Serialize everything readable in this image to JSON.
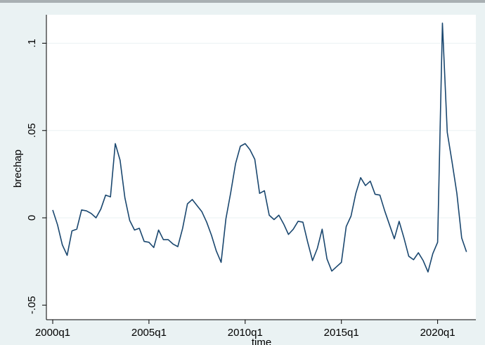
{
  "chart_data": {
    "type": "line",
    "title": "",
    "xlabel": "time",
    "ylabel": "brechap",
    "grid": true,
    "xlim": [
      "2000q1",
      "2021q3"
    ],
    "ylim": [
      -0.05,
      0.12
    ],
    "x_ticks": [
      {
        "label": "2000q1",
        "value": "2000q1"
      },
      {
        "label": "2005q1",
        "value": "2005q1"
      },
      {
        "label": "2010q1",
        "value": "2010q1"
      },
      {
        "label": "2015q1",
        "value": "2015q1"
      },
      {
        "label": "2020q1",
        "value": "2020q1"
      }
    ],
    "y_ticks": [
      {
        "label": "-.05",
        "value": -0.05
      },
      {
        "label": "0",
        "value": 0
      },
      {
        "label": ".05",
        "value": 0.05
      },
      {
        "label": ".1",
        "value": 0.1
      }
    ],
    "series": [
      {
        "color": "#1a476f",
        "x": [
          "2000q1",
          "2000q2",
          "2000q3",
          "2000q4",
          "2001q1",
          "2001q2",
          "2001q3",
          "2001q4",
          "2002q1",
          "2002q2",
          "2002q3",
          "2002q4",
          "2003q1",
          "2003q2",
          "2003q3",
          "2003q4",
          "2004q1",
          "2004q2",
          "2004q3",
          "2004q4",
          "2005q1",
          "2005q2",
          "2005q3",
          "2005q4",
          "2006q1",
          "2006q2",
          "2006q3",
          "2006q4",
          "2007q1",
          "2007q2",
          "2007q3",
          "2007q4",
          "2008q1",
          "2008q2",
          "2008q3",
          "2008q4",
          "2009q1",
          "2009q2",
          "2009q3",
          "2009q4",
          "2010q1",
          "2010q2",
          "2010q3",
          "2010q4",
          "2011q1",
          "2011q2",
          "2011q3",
          "2011q4",
          "2012q1",
          "2012q2",
          "2012q3",
          "2012q4",
          "2013q1",
          "2013q2",
          "2013q3",
          "2013q4",
          "2014q1",
          "2014q2",
          "2014q3",
          "2014q4",
          "2015q1",
          "2015q2",
          "2015q3",
          "2015q4",
          "2016q1",
          "2016q2",
          "2016q3",
          "2016q4",
          "2017q1",
          "2017q2",
          "2017q3",
          "2017q4",
          "2018q1",
          "2018q2",
          "2018q3",
          "2018q4",
          "2019q1",
          "2019q2",
          "2019q3",
          "2019q4",
          "2020q1",
          "2020q2",
          "2020q3",
          "2020q4",
          "2021q1",
          "2021q2",
          "2021q3"
        ],
        "values": [
          0.0045,
          -0.004,
          -0.0155,
          -0.0215,
          -0.0075,
          -0.0065,
          0.0045,
          0.004,
          0.0025,
          0.0,
          0.005,
          0.013,
          0.012,
          0.0425,
          0.033,
          0.0115,
          -0.0015,
          -0.007,
          -0.006,
          -0.0135,
          -0.014,
          -0.017,
          -0.007,
          -0.0125,
          -0.0125,
          -0.015,
          -0.0165,
          -0.006,
          0.008,
          0.0105,
          0.007,
          0.0035,
          -0.0025,
          -0.01,
          -0.019,
          -0.0255,
          -0.0005,
          0.0145,
          0.031,
          0.041,
          0.0425,
          0.039,
          0.0335,
          0.014,
          0.0155,
          0.0015,
          -0.001,
          0.0015,
          -0.0035,
          -0.0095,
          -0.0065,
          -0.002,
          -0.0025,
          -0.014,
          -0.0245,
          -0.0175,
          -0.0065,
          -0.0235,
          -0.0305,
          -0.028,
          -0.0255,
          -0.005,
          0.001,
          0.014,
          0.023,
          0.0185,
          0.021,
          0.0135,
          0.013,
          0.004,
          -0.004,
          -0.012,
          -0.002,
          -0.0115,
          -0.022,
          -0.024,
          -0.02,
          -0.0245,
          -0.031,
          -0.0205,
          -0.014,
          0.1115,
          0.049,
          0.032,
          0.014,
          -0.0115,
          -0.0195
        ]
      }
    ]
  }
}
